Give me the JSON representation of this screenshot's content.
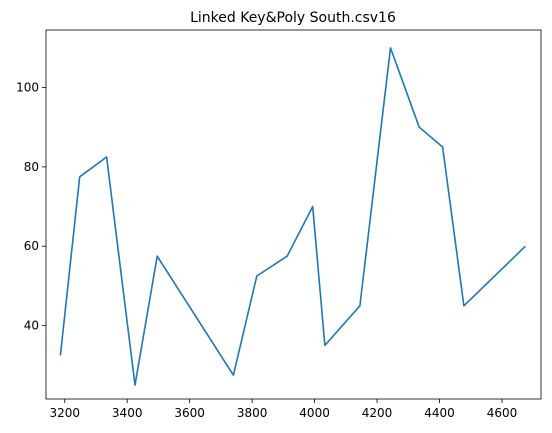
{
  "chart_data": {
    "type": "line",
    "title": "Linked Key&Poly South.csv16",
    "xlabel": "",
    "ylabel": "",
    "xlim": [
      3140,
      4725
    ],
    "ylim": [
      21.5,
      114.5
    ],
    "xticks": [
      3200,
      3400,
      3600,
      3800,
      4000,
      4200,
      4400,
      4600
    ],
    "yticks": [
      40,
      60,
      80,
      100
    ],
    "grid": false,
    "series": [
      {
        "color": "#1f77b4",
        "x": [
          3186,
          3248,
          3334,
          3425,
          3496,
          3740,
          3815,
          3912,
          3994,
          4033,
          4145,
          4243,
          4335,
          4410,
          4478,
          4675
        ],
        "y": [
          32.5,
          77.5,
          82.5,
          25,
          57.5,
          27.5,
          52.5,
          57.5,
          70,
          35,
          45,
          110,
          90,
          85,
          45,
          60
        ]
      }
    ]
  }
}
